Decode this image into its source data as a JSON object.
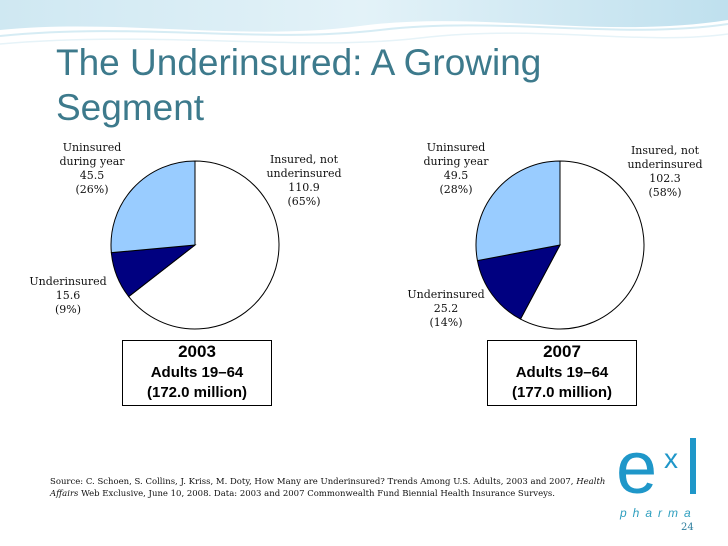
{
  "slide": {
    "title": "The Underinsured: A Growing Segment",
    "source_prefix": "Source: C. Schoen, S. Collins, J. Kriss, M. Doty, How Many are Underinsured? Trends Among U.S. Adults, 2003 and 2007, ",
    "source_journal": "Health Affairs",
    "source_suffix": " Web Exclusive, June 10, 2008. Data: 2003 and 2007 Commonwealth Fund Biennial Health Insurance Surveys.",
    "page_number": "24",
    "logo": {
      "e": "e",
      "x": "x",
      "pharma": "pharma"
    }
  },
  "colors": {
    "insured": "#ffffff",
    "underinsured": "#000080",
    "uninsured": "#99ccff",
    "title": "#3d7a8c",
    "accent": "#1f97c9"
  },
  "chart_data": [
    {
      "type": "pie",
      "title": "2003",
      "subtitle1": "Adults 19–64",
      "subtitle2": "(172.0 million)",
      "slices": [
        {
          "key": "insured",
          "label1": "Insured, not",
          "label2": "underinsured",
          "value_text": "110.9",
          "pct_text": "(65%)",
          "value": 110.9,
          "percent": 65
        },
        {
          "key": "underinsured",
          "label1": "Underinsured",
          "label2": "",
          "value_text": "15.6",
          "pct_text": "(9%)",
          "value": 15.6,
          "percent": 9
        },
        {
          "key": "uninsured",
          "label1": "Uninsured",
          "label2": "during year",
          "value_text": "45.5",
          "pct_text": "(26%)",
          "value": 45.5,
          "percent": 26
        }
      ]
    },
    {
      "type": "pie",
      "title": "2007",
      "subtitle1": "Adults 19–64",
      "subtitle2": "(177.0 million)",
      "slices": [
        {
          "key": "insured",
          "label1": "Insured, not",
          "label2": "underinsured",
          "value_text": "102.3",
          "pct_text": "(58%)",
          "value": 102.3,
          "percent": 58
        },
        {
          "key": "underinsured",
          "label1": "Underinsured",
          "label2": "",
          "value_text": "25.2",
          "pct_text": "(14%)",
          "value": 25.2,
          "percent": 14
        },
        {
          "key": "uninsured",
          "label1": "Uninsured",
          "label2": "during year",
          "value_text": "49.5",
          "pct_text": "(28%)",
          "value": 49.5,
          "percent": 28
        }
      ]
    }
  ]
}
